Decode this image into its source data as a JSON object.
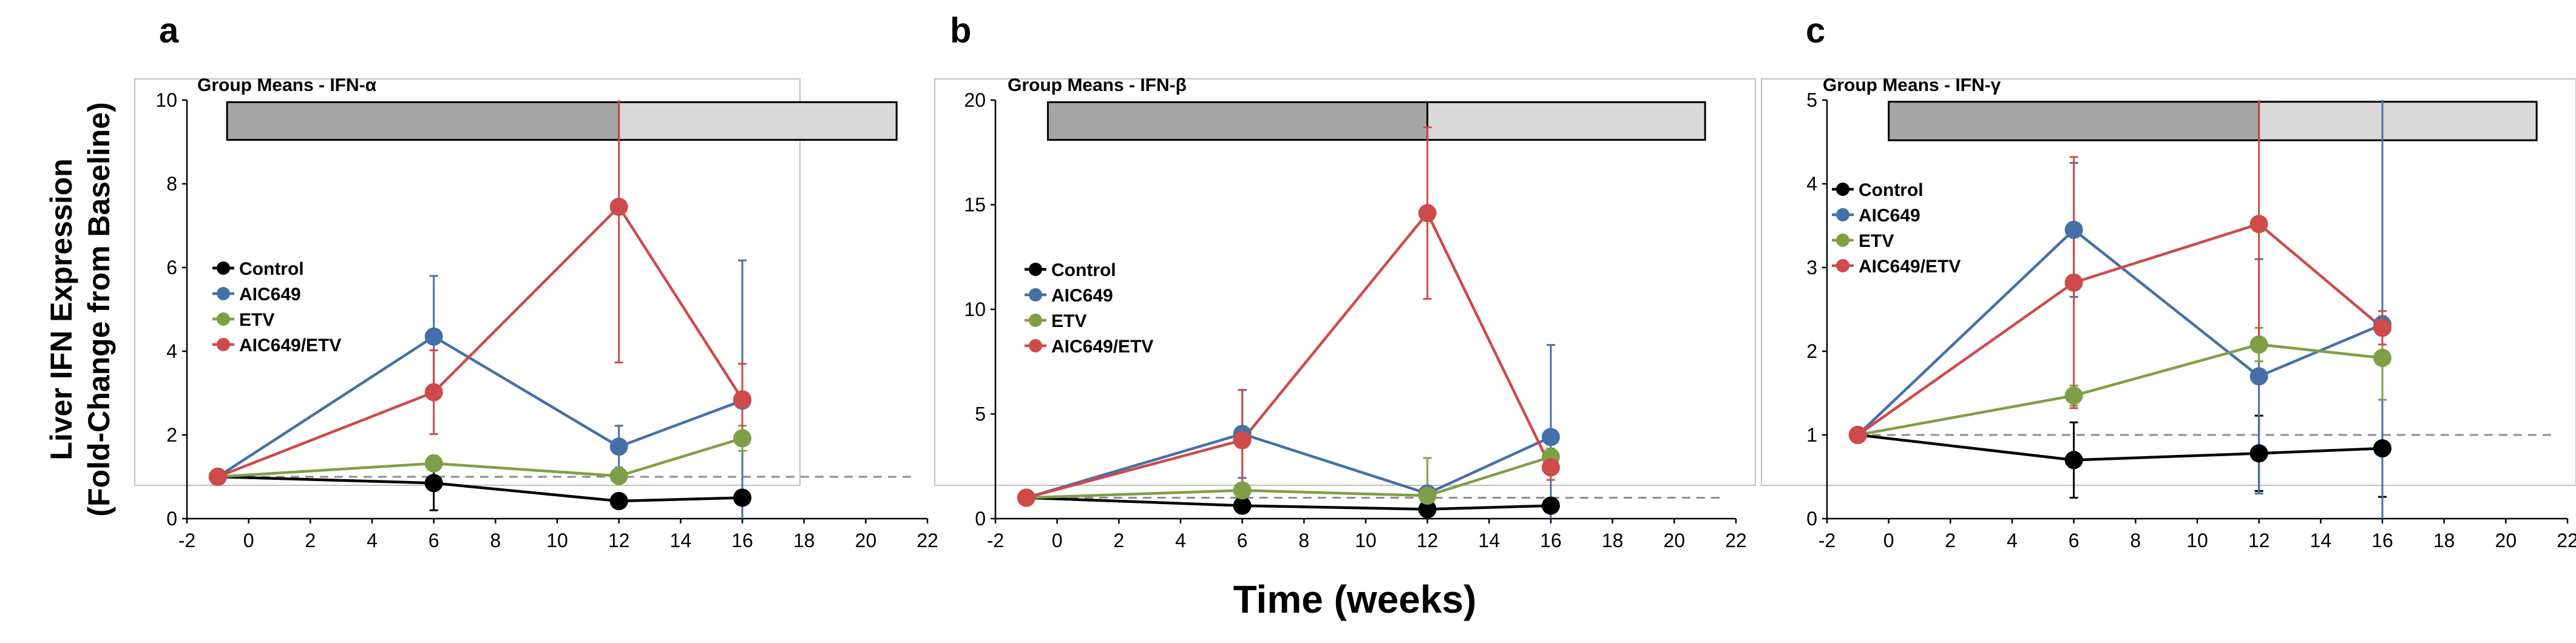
{
  "figure": {
    "ylabel_line1": "Liver IFN Expression",
    "ylabel_line2": "(Fold-Change from Baseline)",
    "xlabel": "Time (weeks)",
    "colors": {
      "Control": "#000000",
      "AIC649": "#4470a8",
      "ETV": "#7f9f46",
      "AIC649/ETV": "#cf4a4a",
      "bar_dark": "#a6a6a6",
      "bar_light": "#d9d9d9",
      "baseline": "#8c8c8c",
      "frame": "#bfbfbf"
    }
  },
  "chart_data": [
    {
      "type": "line",
      "letter": "a",
      "title": "Group Means - IFN-α",
      "x_ticks": [
        "-2",
        "0",
        "2",
        "4",
        "6",
        "8",
        "10",
        "12",
        "14",
        "16",
        "18",
        "20",
        "22"
      ],
      "y_ticks": [
        "0",
        "2",
        "4",
        "6",
        "8",
        "10"
      ],
      "xlim": [
        -2,
        22
      ],
      "ylim": [
        0,
        10
      ],
      "baseline": 1,
      "treatment_bar": [
        {
          "start": -0.7,
          "end": 12,
          "shade": "dark"
        },
        {
          "start": 12,
          "end": 21,
          "shade": "light"
        }
      ],
      "bar_range": [
        9.05,
        9.95
      ],
      "legend": [
        "Control",
        "AIC649",
        "ETV",
        "AIC649/ETV"
      ],
      "series": [
        {
          "name": "Control",
          "x": [
            -1,
            6,
            12,
            16
          ],
          "y": [
            1.0,
            0.85,
            0.42,
            0.5
          ],
          "err": [
            0,
            0.65,
            0.1,
            0.15
          ]
        },
        {
          "name": "AIC649",
          "x": [
            -1,
            6,
            12,
            16
          ],
          "y": [
            1.0,
            4.35,
            1.72,
            2.82
          ],
          "err": [
            0,
            1.45,
            0.5,
            3.35
          ]
        },
        {
          "name": "ETV",
          "x": [
            -1,
            6,
            12,
            16
          ],
          "y": [
            1.0,
            1.32,
            1.02,
            1.92
          ],
          "err": [
            0,
            0.1,
            0.1,
            0.3
          ]
        },
        {
          "name": "AIC649/ETV",
          "x": [
            -1,
            6,
            12,
            16
          ],
          "y": [
            1.0,
            3.02,
            7.45,
            2.85
          ],
          "err": [
            0,
            1.0,
            3.72,
            0.85
          ]
        }
      ]
    },
    {
      "type": "line",
      "letter": "b",
      "title": "Group Means - IFN-β",
      "x_ticks": [
        "-2",
        "0",
        "2",
        "4",
        "6",
        "8",
        "10",
        "12",
        "14",
        "16",
        "18",
        "20",
        "22"
      ],
      "y_ticks": [
        "0",
        "5",
        "10",
        "15",
        "20"
      ],
      "xlim": [
        -2,
        22
      ],
      "ylim": [
        0,
        20
      ],
      "baseline": 1,
      "treatment_bar": [
        {
          "start": -0.3,
          "end": 12,
          "shade": "dark"
        },
        {
          "start": 12,
          "end": 21,
          "shade": "light"
        }
      ],
      "bar_range": [
        18.1,
        19.9
      ],
      "legend": [
        "Control",
        "AIC649",
        "ETV",
        "AIC649/ETV"
      ],
      "series": [
        {
          "name": "Control",
          "x": [
            -1,
            6,
            12,
            16
          ],
          "y": [
            1.0,
            0.62,
            0.45,
            0.62
          ],
          "err": [
            0,
            0.1,
            0.1,
            0.1
          ]
        },
        {
          "name": "AIC649",
          "x": [
            -1,
            6,
            12,
            16
          ],
          "y": [
            1.0,
            4.05,
            1.2,
            3.9
          ],
          "err": [
            0,
            2.1,
            0.1,
            4.4
          ]
        },
        {
          "name": "ETV",
          "x": [
            -1,
            6,
            12,
            16
          ],
          "y": [
            1.0,
            1.35,
            1.1,
            2.95
          ],
          "err": [
            0,
            0.2,
            1.8,
            0.4
          ]
        },
        {
          "name": "AIC649/ETV",
          "x": [
            -1,
            6,
            12,
            16
          ],
          "y": [
            1.0,
            3.75,
            14.6,
            2.45
          ],
          "err": [
            0,
            2.4,
            4.1,
            0.6
          ]
        }
      ]
    },
    {
      "type": "line",
      "letter": "c",
      "title": "Group Means - IFN-γ",
      "x_ticks": [
        "-2",
        "0",
        "2",
        "4",
        "6",
        "8",
        "10",
        "12",
        "14",
        "16",
        "18",
        "20",
        "22"
      ],
      "y_ticks": [
        "0",
        "1",
        "2",
        "3",
        "4",
        "5"
      ],
      "xlim": [
        -2,
        22
      ],
      "ylim": [
        0,
        5
      ],
      "baseline": 1,
      "treatment_bar": [
        {
          "start": 0,
          "end": 12,
          "shade": "dark"
        },
        {
          "start": 12,
          "end": 21,
          "shade": "light"
        }
      ],
      "bar_range": [
        4.52,
        4.98
      ],
      "legend": [
        "Control",
        "AIC649",
        "ETV",
        "AIC649/ETV"
      ],
      "series": [
        {
          "name": "Control",
          "x": [
            -1,
            6,
            12,
            16
          ],
          "y": [
            1.0,
            0.7,
            0.78,
            0.84
          ],
          "err": [
            0,
            0.45,
            0.45,
            0.58
          ]
        },
        {
          "name": "AIC649",
          "x": [
            -1,
            6,
            12,
            16
          ],
          "y": [
            1.0,
            3.45,
            1.7,
            2.32
          ],
          "err": [
            0,
            0.8,
            1.4,
            2.7
          ]
        },
        {
          "name": "ETV",
          "x": [
            -1,
            6,
            12,
            16
          ],
          "y": [
            1.0,
            1.47,
            2.08,
            1.92
          ],
          "err": [
            0,
            0.12,
            0.2,
            0.5
          ]
        },
        {
          "name": "AIC649/ETV",
          "x": [
            -1,
            6,
            12,
            16
          ],
          "y": [
            1.0,
            2.82,
            3.52,
            2.28
          ],
          "err": [
            0,
            1.5,
            1.5,
            0.2
          ]
        }
      ]
    }
  ]
}
